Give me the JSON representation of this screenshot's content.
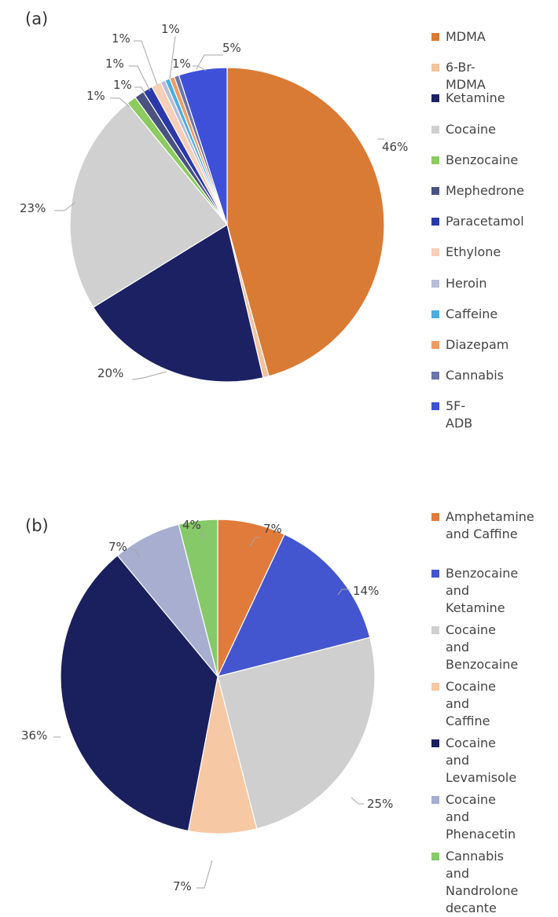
{
  "chart_data": [
    {
      "type": "pie",
      "panel_label": "(a)",
      "title": "",
      "legend_position": "right",
      "slices": [
        {
          "label": "MDMA",
          "value": 46,
          "data_label": "46%",
          "color": "#D97B35"
        },
        {
          "label": "6-Br-MDMA",
          "value": 0.6,
          "data_label": "",
          "color": "#F4C29C"
        },
        {
          "label": "Ketamine",
          "value": 20,
          "data_label": "20%",
          "color": "#1B2163"
        },
        {
          "label": "Cocaine",
          "value": 23,
          "data_label": "23%",
          "color": "#D0D0D0"
        },
        {
          "label": "Benzocaine",
          "value": 1,
          "data_label": "1%",
          "color": "#8CCB5E"
        },
        {
          "label": "Mephedrone",
          "value": 1,
          "data_label": "1%",
          "color": "#4A5280"
        },
        {
          "label": "Paracetamol",
          "value": 1,
          "data_label": "1%",
          "color": "#2B39A8"
        },
        {
          "label": "Ethylone",
          "value": 1,
          "data_label": "1%",
          "color": "#F6CFB8"
        },
        {
          "label": "Heroin",
          "value": 0.5,
          "data_label": "",
          "color": "#B8BED6"
        },
        {
          "label": "Caffeine",
          "value": 0.5,
          "data_label": "1%",
          "color": "#4AAEE3"
        },
        {
          "label": "Diazepam",
          "value": 0.5,
          "data_label": "",
          "color": "#EE9B62"
        },
        {
          "label": "Cannabis",
          "value": 0.5,
          "data_label": "1%",
          "color": "#6D76A8"
        },
        {
          "label": "5F-ADB",
          "value": 5,
          "data_label": "5%",
          "color": "#3F50D8"
        }
      ]
    },
    {
      "type": "pie",
      "panel_label": "(b)",
      "title": "",
      "legend_position": "right",
      "slices": [
        {
          "label": "Amphetamine\nand Caffine",
          "value": 7,
          "data_label": "7%",
          "color": "#E07B3C"
        },
        {
          "label": "Benzocaine and\nKetamine",
          "value": 14,
          "data_label": "14%",
          "color": "#4455D0"
        },
        {
          "label": "Cocaine and\nBenzocaine",
          "value": 25,
          "data_label": "25%",
          "color": "#CFCFCF"
        },
        {
          "label": "Cocaine and\nCaffine",
          "value": 7,
          "data_label": "7%",
          "color": "#F6C8A4"
        },
        {
          "label": "Cocaine and\nLevamisole",
          "value": 36,
          "data_label": "36%",
          "color": "#1A1F5E"
        },
        {
          "label": "Cocaine and\nPhenacetin",
          "value": 7,
          "data_label": "7%",
          "color": "#A7AECF"
        },
        {
          "label": "Cannabis and\nNandrolone\ndecante",
          "value": 4,
          "data_label": "4%",
          "color": "#86C968"
        }
      ]
    }
  ]
}
